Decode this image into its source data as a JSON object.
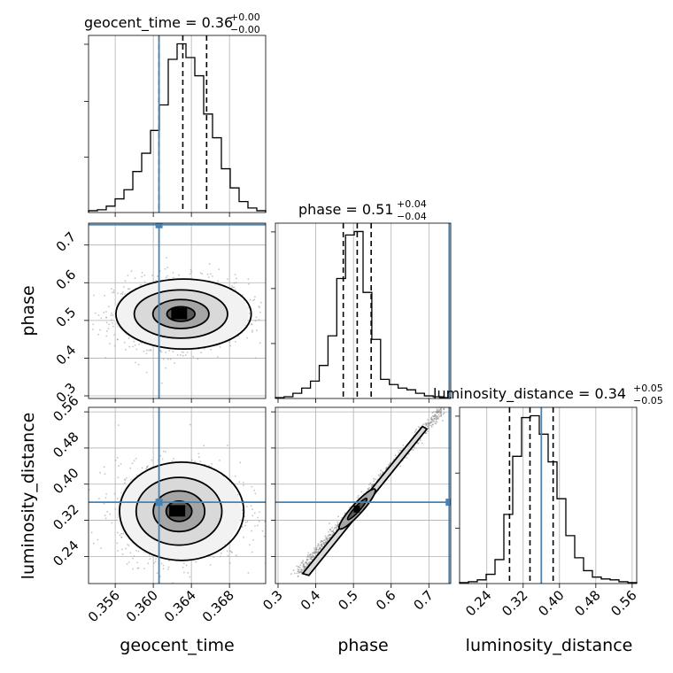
{
  "chart_data": {
    "type": "corner",
    "parameters": [
      "geocent_time",
      "phase",
      "luminosity_distance"
    ],
    "axis_labels": {
      "geocent_time": "geocent_time",
      "phase": "phase",
      "luminosity_distance": "luminosity_distance"
    },
    "ranges": {
      "geocent_time": [
        0.3532,
        0.3718
      ],
      "phase": [
        0.293,
        0.758
      ],
      "luminosity_distance": [
        0.18,
        0.57
      ]
    },
    "ticks": {
      "geocent_time": [
        "0.356",
        "0.360",
        "0.364",
        "0.368"
      ],
      "phase": [
        "0.3",
        "0.4",
        "0.5",
        "0.6",
        "0.7"
      ],
      "luminosity_distance": [
        "0.24",
        "0.32",
        "0.40",
        "0.48",
        "0.56"
      ]
    },
    "titles": [
      {
        "param": "geocent_time",
        "text": "geocent_time = 0.36",
        "upper": "+0.00",
        "lower": "−0.00"
      },
      {
        "param": "phase",
        "text": "phase = 0.51",
        "upper": "+0.04",
        "lower": "−0.04"
      },
      {
        "param": "luminosity_distance",
        "text": "luminosity_distance = 0.34",
        "upper": "+0.05",
        "lower": "−0.05"
      }
    ],
    "quantiles": {
      "geocent_time": [
        0.3606,
        0.3631,
        0.3656
      ],
      "phase": [
        0.473,
        0.51,
        0.547
      ],
      "luminosity_distance": [
        0.29,
        0.335,
        0.386
      ]
    },
    "truths": {
      "geocent_time": 0.3606,
      "phase": 0.754,
      "luminosity_distance": 0.36
    },
    "histograms": {
      "geocent_time": {
        "edges": [
          0.3532,
          0.35413,
          0.35506,
          0.35599,
          0.35692,
          0.35785,
          0.35878,
          0.35971,
          0.36064,
          0.36157,
          0.3625,
          0.36343,
          0.36436,
          0.36529,
          0.36622,
          0.36715,
          0.36808,
          0.36901,
          0.36994,
          0.37087,
          0.3718
        ],
        "counts": [
          2,
          3,
          7,
          15,
          25,
          45,
          65,
          90,
          118,
          168,
          185,
          170,
          150,
          108,
          82,
          48,
          27,
          12,
          5,
          2
        ]
      },
      "phase": {
        "edges": [
          0.293,
          0.31625,
          0.3395,
          0.36275,
          0.386,
          0.40925,
          0.4325,
          0.45575,
          0.479,
          0.50225,
          0.5255,
          0.54875,
          0.572,
          0.59525,
          0.6185,
          0.64175,
          0.665,
          0.68825,
          0.7115,
          0.73475,
          0.758
        ],
        "counts": [
          1,
          2,
          6,
          12,
          20,
          38,
          72,
          138,
          188,
          192,
          122,
          68,
          22,
          16,
          12,
          10,
          6,
          3,
          2,
          1
        ]
      },
      "luminosity_distance": {
        "edges": [
          0.18,
          0.1995,
          0.219,
          0.2385,
          0.258,
          0.2775,
          0.297,
          0.3165,
          0.336,
          0.3555,
          0.375,
          0.3945,
          0.414,
          0.4335,
          0.453,
          0.4725,
          0.492,
          0.5115,
          0.531,
          0.5505,
          0.57
        ],
        "counts": [
          1,
          2,
          4,
          10,
          26,
          75,
          138,
          180,
          182,
          162,
          132,
          92,
          52,
          28,
          14,
          7,
          5,
          4,
          2,
          1
        ]
      }
    },
    "contours": {
      "phase|geocent_time": {
        "center": [
          0.3629,
          0.517
        ],
        "radius": [
          0.0049,
          0.064
        ],
        "levels": [
          0.3,
          0.6,
          1.0,
          1.45
        ]
      },
      "luminosity_distance|geocent_time": {
        "center": [
          0.3627,
          0.34
        ],
        "radius": [
          0.0045,
          0.075
        ],
        "levels": [
          0.3,
          0.6,
          1.0,
          1.45
        ]
      },
      "luminosity_distance|phase": {
        "type": "diagonal",
        "x_range": [
          0.35,
          0.74
        ],
        "y_range": [
          0.2,
          0.57
        ],
        "center": [
          0.51,
          0.345
        ]
      }
    }
  }
}
